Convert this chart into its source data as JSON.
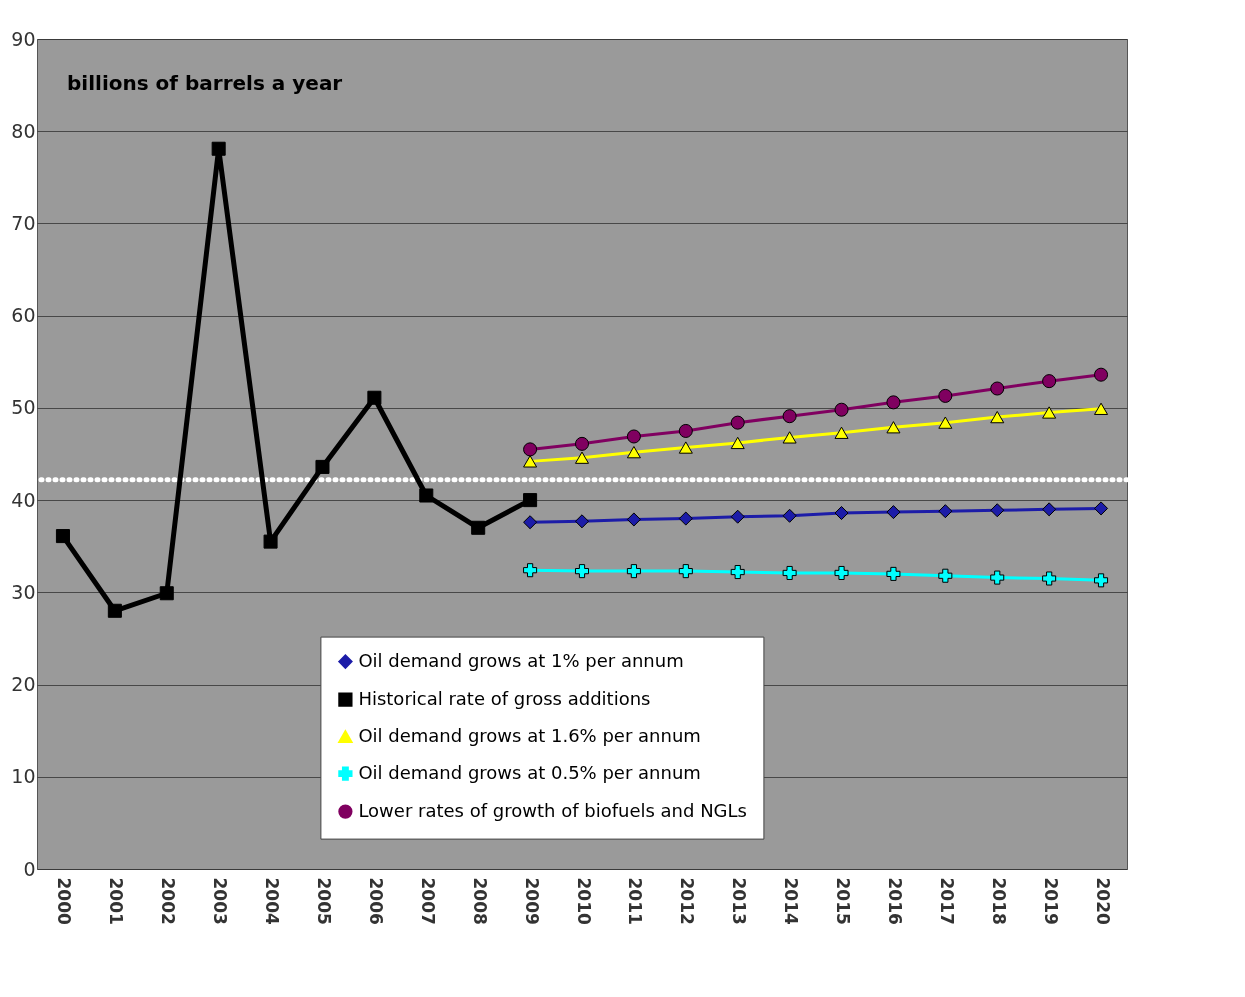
{
  "chart_data": {
    "type": "line",
    "annotations": [
      "billions of barrels a year"
    ],
    "categories": [
      "2000",
      "2001",
      "2002",
      "2003",
      "2004",
      "2005",
      "2006",
      "2007",
      "2008",
      "2009",
      "2010",
      "2011",
      "2012",
      "2013",
      "2014",
      "2015",
      "2016",
      "2017",
      "2018",
      "2019",
      "2020"
    ],
    "series": [
      {
        "name": "Oil demand grows at 1% per annum",
        "color": "#1c1ca8",
        "marker": "diamond",
        "values": [
          null,
          null,
          null,
          null,
          null,
          null,
          null,
          null,
          null,
          37.6,
          37.7,
          37.9,
          38.0,
          38.2,
          38.3,
          38.6,
          38.7,
          38.8,
          38.9,
          39.0,
          39.1
        ]
      },
      {
        "name": "Historical rate of gross additions",
        "color": "#000000",
        "marker": "square",
        "values": [
          36.1,
          28.0,
          29.9,
          78.1,
          35.5,
          43.6,
          51.1,
          40.5,
          37.0,
          40.0,
          null,
          null,
          null,
          null,
          null,
          null,
          null,
          null,
          null,
          null,
          null
        ]
      },
      {
        "name": "Oil demand grows at 1.6% per annum",
        "color": "#ffff00",
        "marker": "triangle",
        "values": [
          null,
          null,
          null,
          null,
          null,
          null,
          null,
          null,
          null,
          44.2,
          44.6,
          45.2,
          45.7,
          46.2,
          46.8,
          47.3,
          47.9,
          48.4,
          49.0,
          49.5,
          49.9
        ]
      },
      {
        "name": "Oil demand grows at 0.5% per annum",
        "color": "#00ffff",
        "marker": "cross",
        "values": [
          null,
          null,
          null,
          null,
          null,
          null,
          null,
          null,
          null,
          32.4,
          32.3,
          32.3,
          32.3,
          32.2,
          32.1,
          32.1,
          32.0,
          31.8,
          31.6,
          31.5,
          31.3
        ]
      },
      {
        "name": "Lower rates of growth of biofuels and NGLs",
        "color": "#800060",
        "marker": "circle",
        "values": [
          null,
          null,
          null,
          null,
          null,
          null,
          null,
          null,
          null,
          45.5,
          46.1,
          46.9,
          47.5,
          48.4,
          49.1,
          49.8,
          50.6,
          51.3,
          52.1,
          52.9,
          53.6
        ]
      }
    ],
    "ylim": [
      0,
      90
    ],
    "yticks": [
      0,
      10,
      20,
      30,
      40,
      50,
      60,
      70,
      80,
      90
    ],
    "ref_lines": [
      {
        "axis": "y",
        "value": 42.2,
        "color": "#ffffff",
        "line_style": "dotted"
      }
    ],
    "grid": "y",
    "legend": "bottom"
  }
}
